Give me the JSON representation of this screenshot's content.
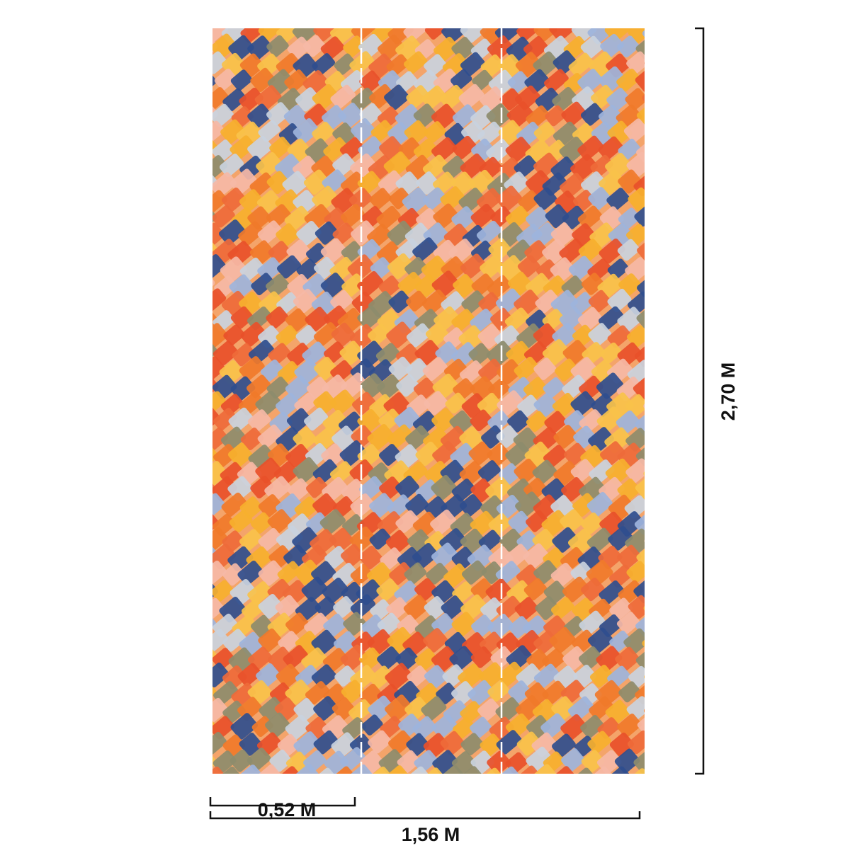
{
  "dimensions": {
    "panel_width": "0,52 M",
    "total_width": "1,56 M",
    "height": "2,70 M"
  }
}
